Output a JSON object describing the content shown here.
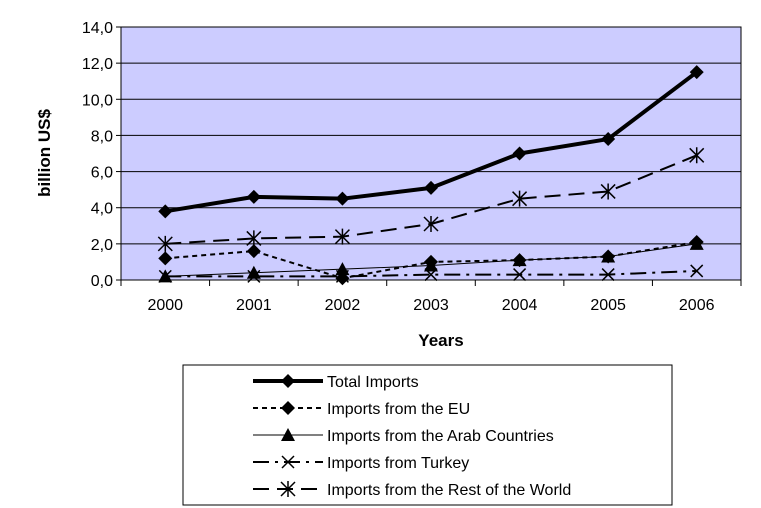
{
  "chart_data": {
    "type": "line",
    "title": "",
    "xlabel": "Years",
    "ylabel": "billion US$",
    "categories": [
      "2000",
      "2001",
      "2002",
      "2003",
      "2004",
      "2005",
      "2006"
    ],
    "y_ticks": [
      "0,0",
      "2,0",
      "4,0",
      "6,0",
      "8,0",
      "10,0",
      "12,0",
      "14,0"
    ],
    "ylim": [
      0,
      14
    ],
    "grid": true,
    "plot_background": "#ccccff",
    "legend_position": "bottom",
    "series": [
      {
        "name": "Total Imports",
        "values": [
          3.8,
          4.6,
          4.5,
          5.1,
          7.0,
          7.8,
          11.5
        ],
        "marker": "diamond",
        "dash": "solid",
        "width": "thick"
      },
      {
        "name": "Imports from the EU",
        "values": [
          1.2,
          1.6,
          0.1,
          1.0,
          1.1,
          1.3,
          2.1
        ],
        "marker": "diamond",
        "dash": "dotted",
        "width": "medium"
      },
      {
        "name": "Imports from the Arab Countries",
        "values": [
          0.2,
          0.4,
          0.6,
          0.8,
          1.1,
          1.3,
          2.0
        ],
        "marker": "triangle",
        "dash": "solid",
        "width": "thin"
      },
      {
        "name": "Imports from Turkey",
        "values": [
          0.2,
          0.2,
          0.2,
          0.3,
          0.3,
          0.3,
          0.5
        ],
        "marker": "x",
        "dash": "long-dash-dot",
        "width": "medium"
      },
      {
        "name": "Imports from the Rest of the World",
        "values": [
          2.0,
          2.3,
          2.4,
          3.1,
          4.5,
          4.9,
          6.9
        ],
        "marker": "asterisk",
        "dash": "long-dash",
        "width": "medium"
      }
    ]
  }
}
